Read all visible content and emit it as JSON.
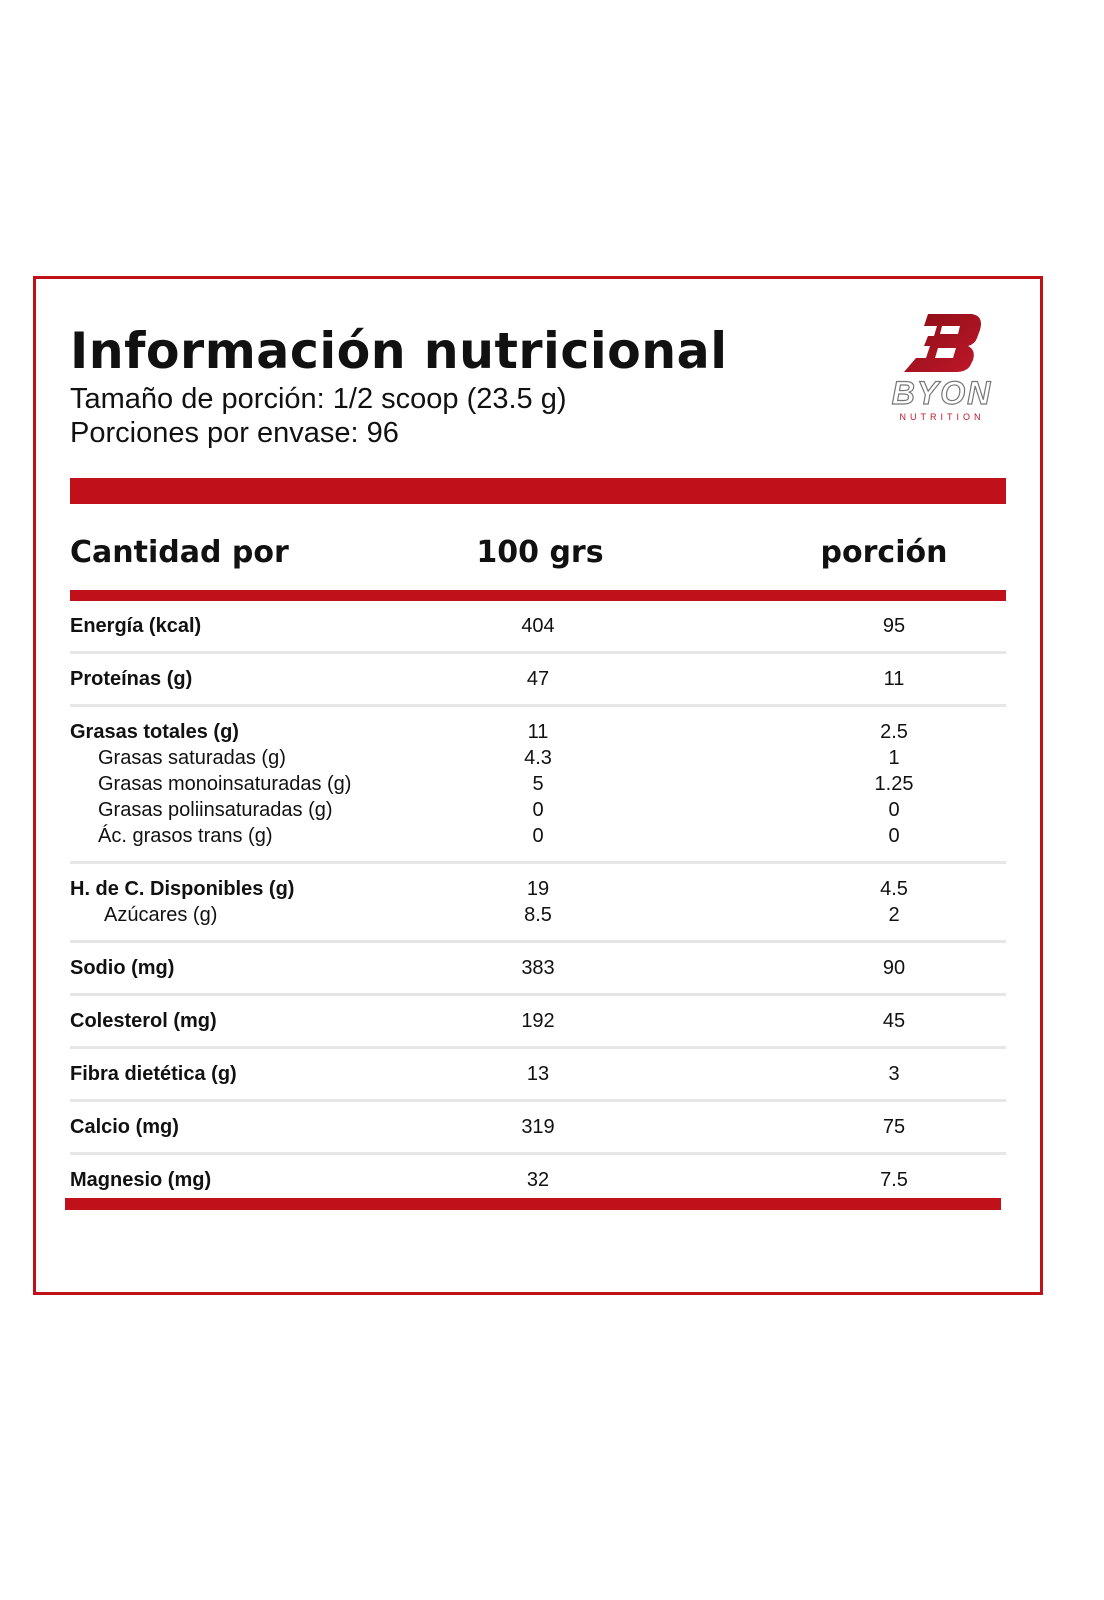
{
  "title": "Información nutricional",
  "serving_size": "Tamaño de porción: 1/2 scoop (23.5 g)",
  "servings_per_container": "Porciones por envase: 96",
  "brand": {
    "name": "BYON",
    "tagline": "NUTRITION",
    "mark": "B"
  },
  "colors": {
    "accent": "#c0101a",
    "divider": "#e6e6e6"
  },
  "header": {
    "label": "Cantidad por",
    "col1": "100 grs",
    "col2": "porción"
  },
  "groups": [
    [
      {
        "label": "Energía (kcal)",
        "v100": "404",
        "vport": "95",
        "level": "main"
      }
    ],
    [
      {
        "label": "Proteínas (g)",
        "v100": "47",
        "vport": "11",
        "level": "main"
      }
    ],
    [
      {
        "label": "Grasas totales (g)",
        "v100": "11",
        "vport": "2.5",
        "level": "main"
      },
      {
        "label": "Grasas saturadas (g)",
        "v100": "4.3",
        "vport": "1",
        "level": "sub1"
      },
      {
        "label": "Grasas monoinsaturadas (g)",
        "v100": "5",
        "vport": "1.25",
        "level": "sub1"
      },
      {
        "label": "Grasas poliinsaturadas (g)",
        "v100": "0",
        "vport": "0",
        "level": "sub1"
      },
      {
        "label": "Ác. grasos trans (g)",
        "v100": "0",
        "vport": "0",
        "level": "sub1"
      }
    ],
    [
      {
        "label": "H. de C. Disponibles (g)",
        "v100": "19",
        "vport": "4.5",
        "level": "main"
      },
      {
        "label": "Azúcares (g)",
        "v100": "8.5",
        "vport": "2",
        "level": "sub2"
      }
    ],
    [
      {
        "label": "Sodio (mg)",
        "v100": "383",
        "vport": "90",
        "level": "main"
      }
    ],
    [
      {
        "label": "Colesterol (mg)",
        "v100": "192",
        "vport": "45",
        "level": "main"
      }
    ],
    [
      {
        "label": "Fibra dietética (g)",
        "v100": "13",
        "vport": "3",
        "level": "main"
      }
    ],
    [
      {
        "label": "Calcio (mg)",
        "v100": "319",
        "vport": "75",
        "level": "main"
      }
    ],
    [
      {
        "label": "Magnesio (mg)",
        "v100": "32",
        "vport": "7.5",
        "level": "main"
      }
    ]
  ]
}
